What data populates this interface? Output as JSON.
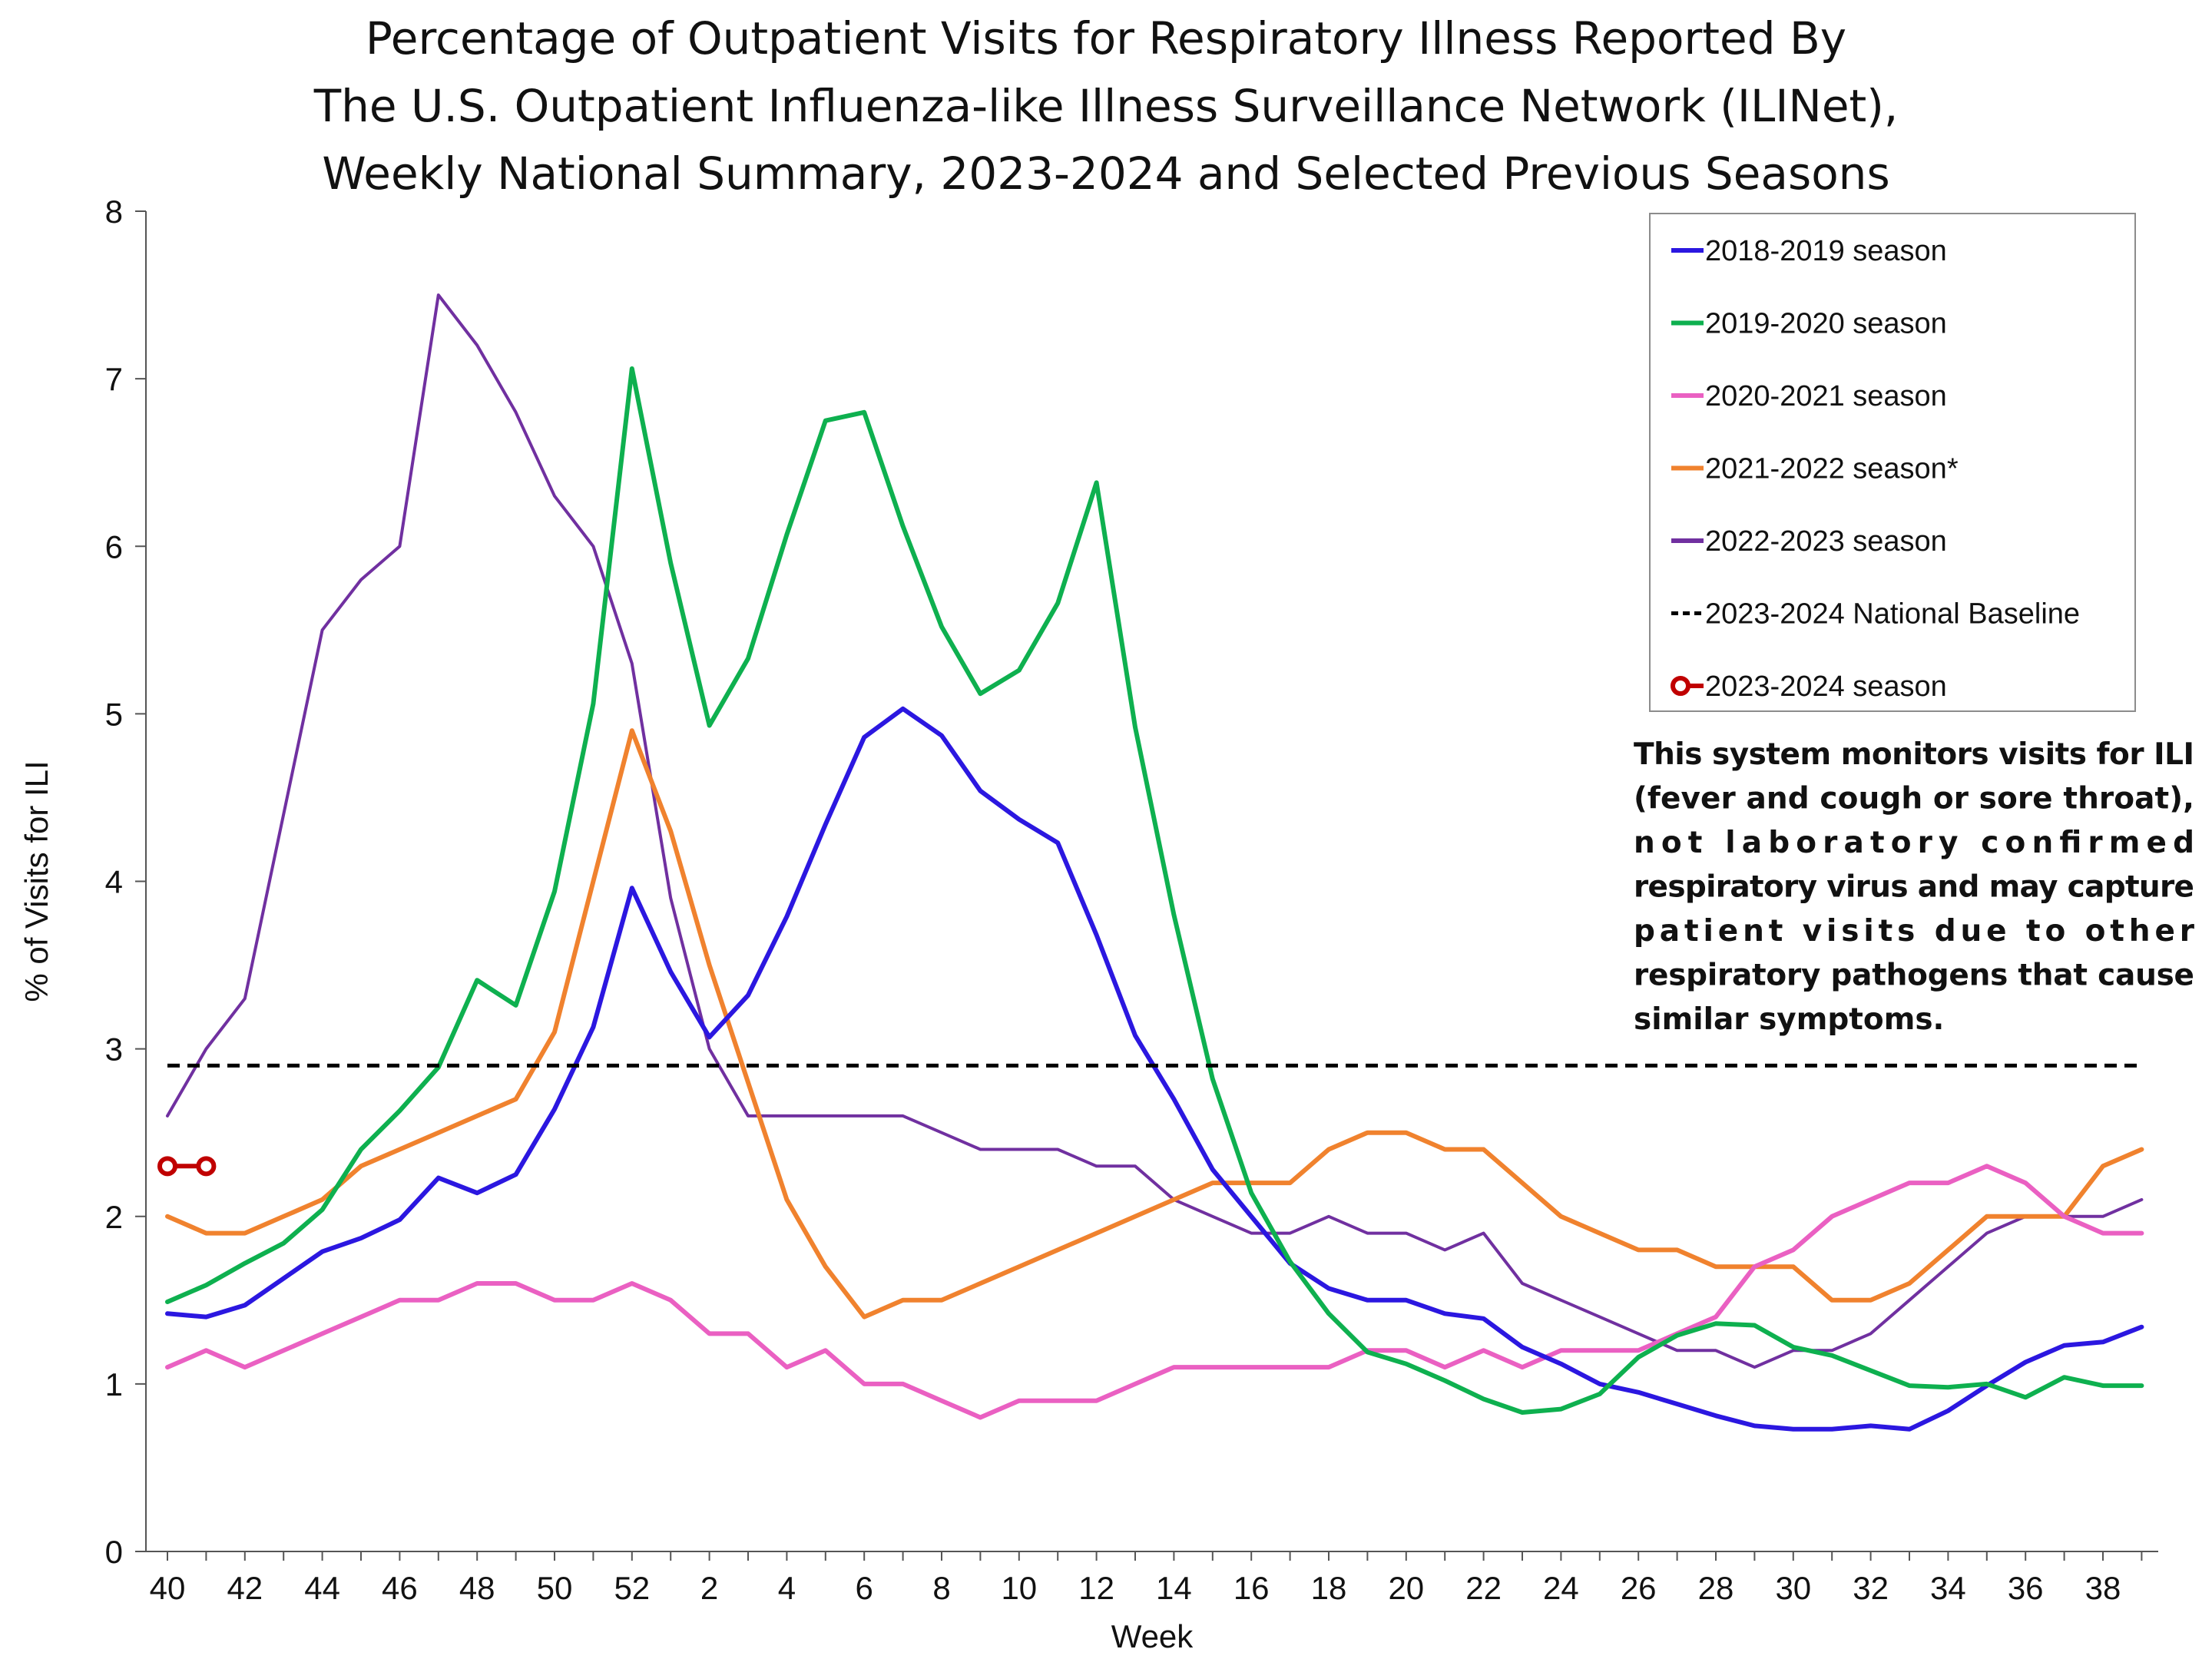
{
  "chart_data": {
    "type": "line",
    "title": [
      "Percentage of Outpatient Visits for Respiratory Illness Reported By",
      "The U.S. Outpatient Influenza-like Illness Surveillance Network (ILINet),",
      "Weekly National Summary, 2023-2024 and Selected Previous Seasons"
    ],
    "xlabel": "Week",
    "ylabel": "% of Visits for ILI",
    "ylim": [
      0,
      8
    ],
    "y_ticks": [
      0,
      1,
      2,
      3,
      4,
      5,
      6,
      7,
      8
    ],
    "x_tick_labels": [
      "40",
      "42",
      "44",
      "46",
      "48",
      "50",
      "52",
      "2",
      "4",
      "6",
      "8",
      "10",
      "12",
      "14",
      "16",
      "18",
      "20",
      "22",
      "24",
      "26",
      "28",
      "30",
      "32",
      "34",
      "36",
      "38"
    ],
    "weeks": [
      "40",
      "41",
      "42",
      "43",
      "44",
      "45",
      "46",
      "47",
      "48",
      "49",
      "50",
      "51",
      "52",
      "1",
      "2",
      "3",
      "4",
      "5",
      "6",
      "7",
      "8",
      "9",
      "10",
      "11",
      "12",
      "13",
      "14",
      "15",
      "16",
      "17",
      "18",
      "19",
      "20",
      "21",
      "22",
      "23",
      "24",
      "25",
      "26",
      "27",
      "28",
      "29",
      "30",
      "31",
      "32",
      "33",
      "34",
      "35",
      "36",
      "37",
      "38",
      "39"
    ],
    "grid": false,
    "legend_position": "top-right",
    "series": [
      {
        "name": "2018-2019 season",
        "color": "#2b17e0",
        "values": [
          1.42,
          1.4,
          1.47,
          1.63,
          1.79,
          1.87,
          1.98,
          2.23,
          2.14,
          2.25,
          2.64,
          3.13,
          3.96,
          3.46,
          3.07,
          3.32,
          3.79,
          4.34,
          4.86,
          5.03,
          4.87,
          4.54,
          4.37,
          4.23,
          3.68,
          3.08,
          2.7,
          2.28,
          2.0,
          1.72,
          1.57,
          1.5,
          1.5,
          1.42,
          1.39,
          1.22,
          1.12,
          1.0,
          0.95,
          0.88,
          0.81,
          0.75,
          0.73,
          0.73,
          0.75,
          0.73,
          0.84,
          0.99,
          1.13,
          1.23,
          1.25,
          1.34
        ]
      },
      {
        "name": "2019-2020 season",
        "color": "#0eb04f",
        "values": [
          1.49,
          1.59,
          1.72,
          1.84,
          2.04,
          2.4,
          2.63,
          2.89,
          3.41,
          3.26,
          3.94,
          5.06,
          7.06,
          5.9,
          4.93,
          5.33,
          6.07,
          6.75,
          6.8,
          6.12,
          5.52,
          5.12,
          5.26,
          5.66,
          6.38,
          4.92,
          3.8,
          2.82,
          2.14,
          1.73,
          1.42,
          1.19,
          1.12,
          1.02,
          0.91,
          0.83,
          0.85,
          0.94,
          1.16,
          1.29,
          1.36,
          1.35,
          1.22,
          1.17,
          1.08,
          0.99,
          0.98,
          1.0,
          0.92,
          1.04,
          0.99,
          0.99
        ]
      },
      {
        "name": "2020-2021 season",
        "color": "#ea60c2",
        "values": [
          1.1,
          1.2,
          1.1,
          1.2,
          1.3,
          1.4,
          1.5,
          1.5,
          1.6,
          1.6,
          1.5,
          1.5,
          1.6,
          1.5,
          1.3,
          1.3,
          1.1,
          1.2,
          1.0,
          1.0,
          0.9,
          0.8,
          0.9,
          0.9,
          0.9,
          1.0,
          1.1,
          1.1,
          1.1,
          1.1,
          1.1,
          1.2,
          1.2,
          1.1,
          1.2,
          1.1,
          1.2,
          1.2,
          1.2,
          1.3,
          1.4,
          1.7,
          1.8,
          2.0,
          2.1,
          2.2,
          2.2,
          2.3,
          2.2,
          2.0,
          1.9,
          1.9
        ]
      },
      {
        "name": "2021-2022 season*",
        "color": "#f0822e",
        "values": [
          2.0,
          1.9,
          1.9,
          2.0,
          2.1,
          2.3,
          2.4,
          2.5,
          2.6,
          2.7,
          3.1,
          4.0,
          4.9,
          4.3,
          3.5,
          2.8,
          2.1,
          1.7,
          1.4,
          1.5,
          1.5,
          1.6,
          1.7,
          1.8,
          1.9,
          2.0,
          2.1,
          2.2,
          2.2,
          2.2,
          2.4,
          2.5,
          2.5,
          2.4,
          2.4,
          2.2,
          2.0,
          1.9,
          1.8,
          1.8,
          1.7,
          1.7,
          1.7,
          1.5,
          1.5,
          1.6,
          1.8,
          2.0,
          2.0,
          2.0,
          2.3,
          2.4
        ]
      },
      {
        "name": "2022-2023 season",
        "color": "#7030a0",
        "values": [
          2.6,
          3.0,
          3.3,
          4.4,
          5.5,
          5.8,
          6.0,
          7.5,
          7.2,
          6.8,
          6.3,
          6.0,
          5.3,
          3.9,
          3.0,
          2.6,
          2.6,
          2.6,
          2.6,
          2.6,
          2.5,
          2.4,
          2.4,
          2.4,
          2.3,
          2.3,
          2.1,
          2.0,
          1.9,
          1.9,
          2.0,
          1.9,
          1.9,
          1.8,
          1.9,
          1.6,
          1.5,
          1.4,
          1.3,
          1.2,
          1.2,
          1.1,
          1.2,
          1.2,
          1.3,
          1.5,
          1.7,
          1.9,
          2.0,
          2.0,
          2.0,
          2.1
        ]
      },
      {
        "name": "2023-2024 National Baseline",
        "color": "#000000",
        "dashed": true,
        "values": [
          2.9,
          2.9,
          2.9,
          2.9,
          2.9,
          2.9,
          2.9,
          2.9,
          2.9,
          2.9,
          2.9,
          2.9,
          2.9,
          2.9,
          2.9,
          2.9,
          2.9,
          2.9,
          2.9,
          2.9,
          2.9,
          2.9,
          2.9,
          2.9,
          2.9,
          2.9,
          2.9,
          2.9,
          2.9,
          2.9,
          2.9,
          2.9,
          2.9,
          2.9,
          2.9,
          2.9,
          2.9,
          2.9,
          2.9,
          2.9,
          2.9,
          2.9,
          2.9,
          2.9,
          2.9,
          2.9,
          2.9,
          2.9,
          2.9,
          2.9,
          2.9,
          2.9
        ]
      },
      {
        "name": "2023-2024 season",
        "color": "#c00000",
        "marker": "open-circle",
        "values": [
          2.3,
          2.3
        ]
      }
    ],
    "annotation": [
      "This system monitors visits for ILI",
      "(fever and cough or sore throat),",
      "not laboratory confirmed",
      "respiratory virus and may capture",
      "patient visits due to other",
      "respiratory pathogens that cause",
      "similar symptoms."
    ]
  }
}
